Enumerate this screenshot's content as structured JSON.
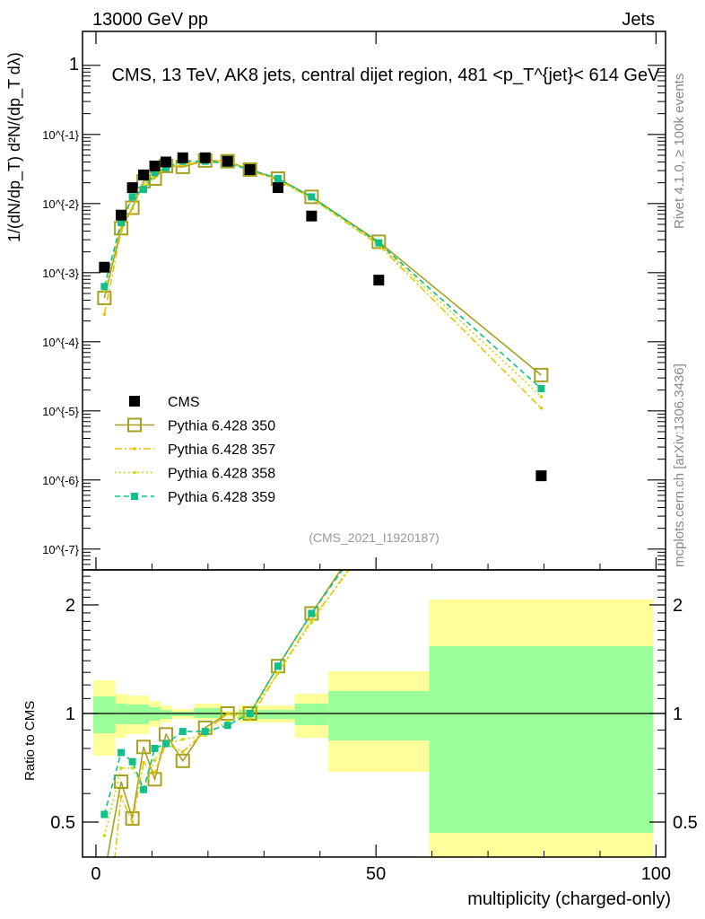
{
  "header": {
    "left": "13000 GeV pp",
    "right": "Jets"
  },
  "side": {
    "rivet": "Rivet 4.1.0, ≥ 100k events",
    "mcplots": "mcplots.cern.ch [arXiv:1306.3436]"
  },
  "chart_data": {
    "type": "line",
    "title": "CMS, 13 TeV, AK8 jets, central dijet region, 481 <p_T^{jet}< 614 GeV",
    "analysis": "(CMS_2021_I1920187)",
    "xlabel": "multiplicity (charged-only)",
    "ylabel": "1/(dN/dp_T) d²N/(dp_T dλ)",
    "ratio_ylabel": "Ratio to CMS",
    "xlim": [
      -2.4,
      101.7
    ],
    "ylim": [
      5e-08,
      3.1
    ],
    "ratio_ylim": [
      0.4,
      2.5
    ],
    "yscale": "log",
    "ratio_yscale": "log",
    "x_ticks": [
      "0",
      "50",
      "100"
    ],
    "y_ticks": [
      "1",
      "10^{-1}",
      "10^{-2}",
      "10^{-3}",
      "10^{-4}",
      "10^{-5}",
      "10^{-6}",
      "10^{-7}"
    ],
    "ratio_ticks": [
      "2",
      "1",
      "0.5"
    ],
    "legend_position": "bottom-left",
    "x": [
      1.5,
      4.5,
      6.5,
      8.5,
      10.5,
      12.5,
      15.5,
      19.5,
      23.5,
      27.5,
      32.5,
      38.5,
      50.5,
      79.5
    ],
    "series": [
      {
        "name": "CMS",
        "color": "#000000",
        "style": "data",
        "values": [
          0.0012,
          0.0068,
          0.017,
          0.026,
          0.035,
          0.04,
          0.046,
          0.046,
          0.041,
          0.031,
          0.017,
          0.0066,
          0.00078,
          1.15e-06
        ]
      },
      {
        "name": "Pythia 6.428 350",
        "color": "#a8a020",
        "style": "solid-open-square",
        "values": [
          0.00043,
          0.0044,
          0.0087,
          0.021,
          0.023,
          0.035,
          0.034,
          0.042,
          0.041,
          0.031,
          0.023,
          0.0125,
          0.0028,
          3.3e-05
        ]
      },
      {
        "name": "Pythia 6.428 357",
        "color": "#e8c400",
        "style": "dashdot",
        "values": [
          0.00025,
          0.004,
          0.0085,
          0.019,
          0.024,
          0.033,
          0.036,
          0.041,
          0.041,
          0.03,
          0.022,
          0.012,
          0.0025,
          1.1e-05
        ]
      },
      {
        "name": "Pythia 6.428 358",
        "color": "#c8dc00",
        "style": "dotted",
        "values": [
          0.00055,
          0.0048,
          0.012,
          0.016,
          0.026,
          0.033,
          0.039,
          0.04,
          0.039,
          0.031,
          0.022,
          0.0118,
          0.0026,
          1.6e-05
        ]
      },
      {
        "name": "Pythia 6.428 359",
        "color": "#10c088",
        "style": "dashed-filled-square",
        "values": [
          0.00063,
          0.0053,
          0.0125,
          0.016,
          0.028,
          0.033,
          0.041,
          0.041,
          0.038,
          0.031,
          0.023,
          0.0125,
          0.0027,
          2.1e-05
        ]
      }
    ],
    "ratio_bands": {
      "edges": [
        -0.5,
        3.5,
        5.5,
        9.5,
        11.5,
        13.5,
        17.5,
        22.5,
        25.5,
        35.5,
        41.5,
        59.5,
        99.5
      ],
      "total_color": "#ffff99",
      "stat_color": "#99ff99",
      "total_lo": [
        0.764,
        0.857,
        0.877,
        0.918,
        0.944,
        0.966,
        0.961,
        0.977,
        0.944,
        0.857,
        0.689,
        0.38
      ],
      "total_hi": [
        1.236,
        1.134,
        1.12,
        1.083,
        1.053,
        1.029,
        1.065,
        1.017,
        1.053,
        1.134,
        1.309,
        2.07
      ],
      "stat_lo": [
        0.882,
        0.934,
        0.934,
        0.955,
        0.966,
        0.983,
        0.972,
        0.989,
        0.966,
        0.928,
        0.842,
        0.467
      ],
      "stat_hi": [
        1.115,
        1.065,
        1.059,
        1.041,
        1.023,
        1.011,
        1.035,
        1.006,
        1.023,
        1.065,
        1.154,
        1.536
      ]
    }
  }
}
